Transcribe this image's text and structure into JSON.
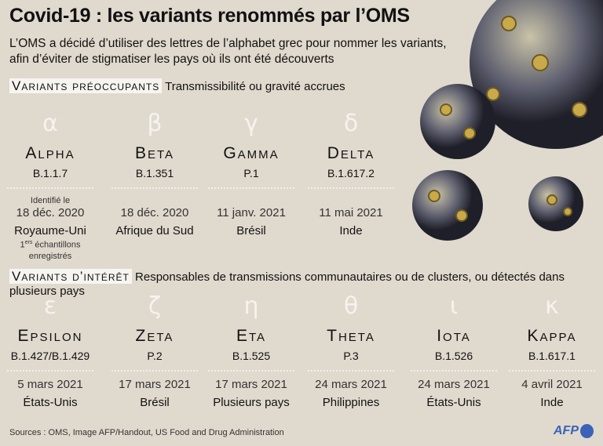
{
  "title": "Covid-19 : les variants renommés par l’OMS",
  "subtitle": "L’OMS a décidé d’utiliser des lettres de l’alphabet grec pour nommer les variants, afin d’éviter de stigmatiser les pays où ils ont été découverts",
  "concern": {
    "tag": "Variants préoccupants",
    "desc": "Transmissibilité ou gravité accrues",
    "variants": [
      {
        "greek": "α",
        "name": "Alpha",
        "code": "B.1.1.7",
        "note": "Identifié le",
        "date": "18 déc. 2020",
        "country": "Royaume-Uni",
        "sup": "ers",
        "extra1": "1",
        "extra2": " échantillons enregistrés"
      },
      {
        "greek": "β",
        "name": "Beta",
        "code": "B.1.351",
        "date": "18 déc. 2020",
        "country": "Afrique du Sud"
      },
      {
        "greek": "γ",
        "name": "Gamma",
        "code": "P.1",
        "date": "11 janv. 2021",
        "country": "Brésil"
      },
      {
        "greek": "δ",
        "name": "Delta",
        "code": "B.1.617.2",
        "date": "11 mai 2021",
        "country": "Inde"
      }
    ]
  },
  "interest": {
    "tag": "Variants d’intérêt",
    "desc": "Responsables de transmissions communautaires ou de clusters, ou détectés dans plusieurs pays",
    "variants": [
      {
        "greek": "ε",
        "name": "Epsilon",
        "code": "B.1.427/B.1.429",
        "date": "5 mars 2021",
        "country": "États-Unis"
      },
      {
        "greek": "ζ",
        "name": "Zeta",
        "code": "P.2",
        "date": "17 mars 2021",
        "country": "Brésil"
      },
      {
        "greek": "η",
        "name": "Eta",
        "code": "B.1.525",
        "date": "17 mars 2021",
        "country": "Plusieurs pays"
      },
      {
        "greek": "θ",
        "name": "Theta",
        "code": "P.3",
        "date": "24 mars 2021",
        "country": "Philippines"
      },
      {
        "greek": "ι",
        "name": "Iota",
        "code": "B.1.526",
        "date": "24 mars 2021",
        "country": "États-Unis"
      },
      {
        "greek": "κ",
        "name": "Kappa",
        "code": "B.1.617.1",
        "date": "4 avril 2021",
        "country": "Inde"
      }
    ]
  },
  "sources": "Sources : OMS,  Image AFP/Handout, US Food and Drug Administration",
  "logo": "AFP"
}
